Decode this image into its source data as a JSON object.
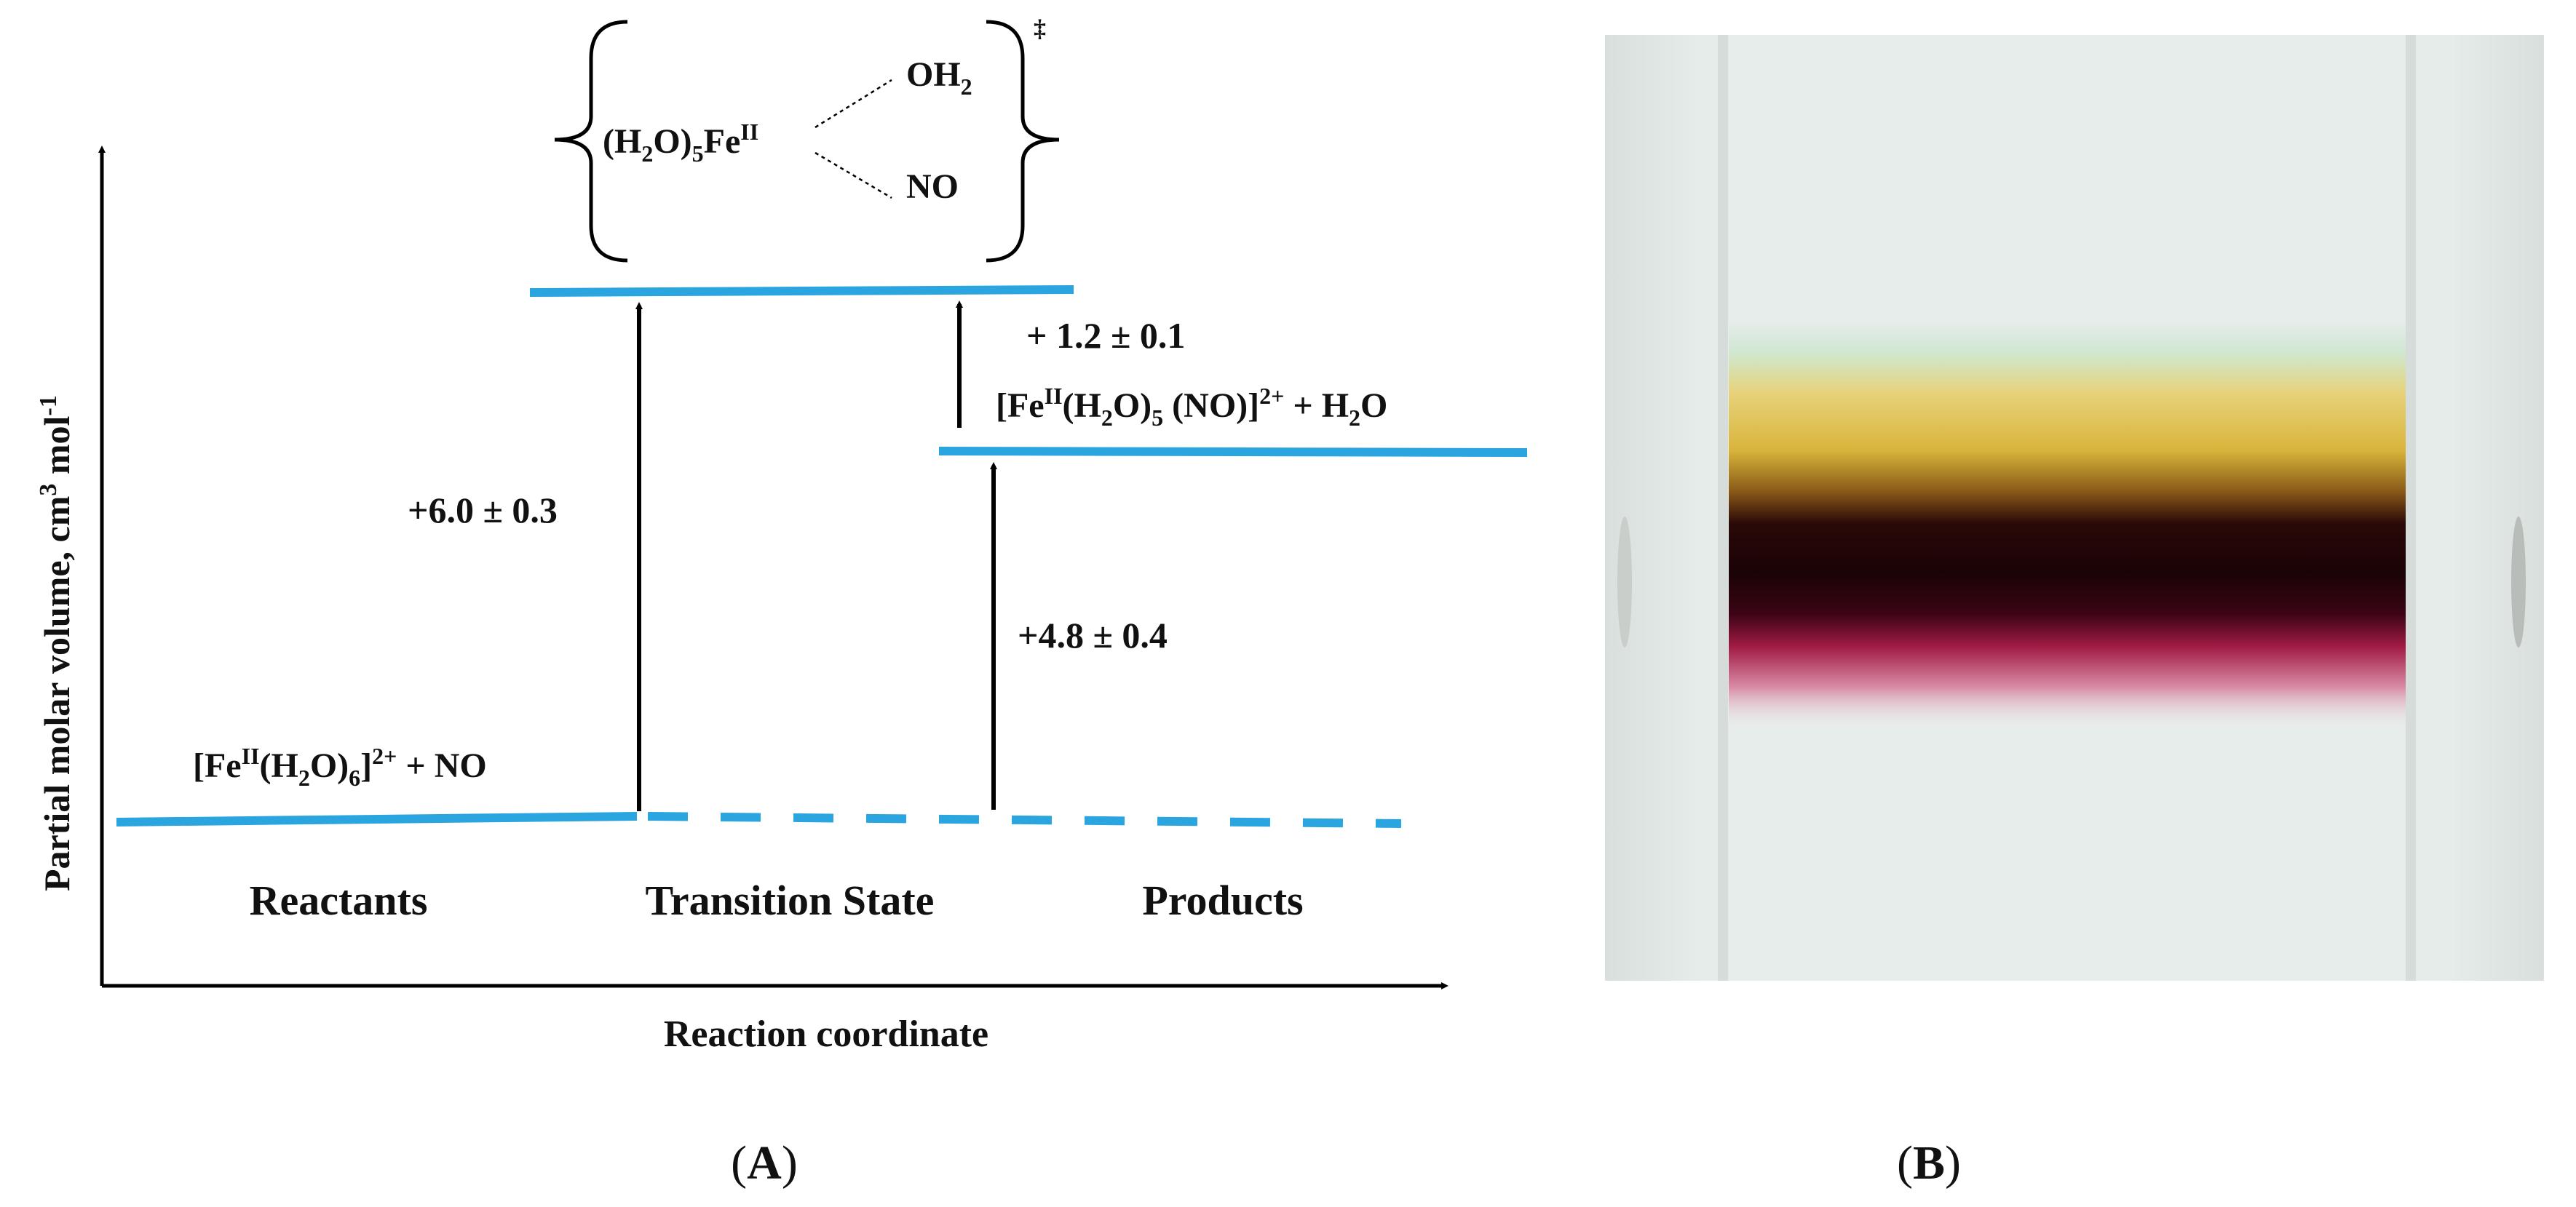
{
  "panel_a": {
    "y_axis_label": "Partial molar volume, cm",
    "y_axis_sup": "3",
    "y_axis_mol": " mol",
    "y_axis_mol_sup": "-1",
    "x_axis_label": "Reaction coordinate",
    "stage_reactants": "Reactants",
    "stage_transition": "Transition State",
    "stage_products": "Products",
    "reactant_formula": {
      "open": "[Fe",
      "ox": "II",
      "mid": "(H",
      "sub1": "2",
      "mid2": "O)",
      "sub2": "6",
      "close": "]",
      "charge": "2+",
      "tail": " + NO"
    },
    "product_formula": {
      "open": "[Fe",
      "ox": "II",
      "mid": "(H",
      "sub1": "2",
      "mid2": "O)",
      "sub2": "5",
      "mid3": " (NO)]",
      "charge": "2+",
      "tail": " + H",
      "sub3": "2",
      "tail2": "O"
    },
    "ts_left": {
      "open": "(H",
      "sub1": "2",
      "mid": "O)",
      "sub2": "5",
      "fe": "Fe",
      "ox": "II"
    },
    "ts_oh2": {
      "base": "OH",
      "sub": "2"
    },
    "ts_no": "NO",
    "ts_dagger": "‡",
    "delta_activation": "+6.0 ± 0.3",
    "delta_reverse": "+ 1.2 ± 0.1",
    "delta_reaction": "+4.8 ± 0.4",
    "colors": {
      "level_line": "#2aa5e0",
      "arrow": "#000000"
    }
  },
  "panel_b": {
    "colors": {
      "background": "#e6ece9",
      "band_yellow": "#d8b43a",
      "band_dark": "#1a0306",
      "band_red": "#a01a44"
    }
  },
  "captions": {
    "a_open": "(",
    "a": "A",
    "a_close": ")",
    "b_open": "(",
    "b": "B",
    "b_close": ")"
  }
}
